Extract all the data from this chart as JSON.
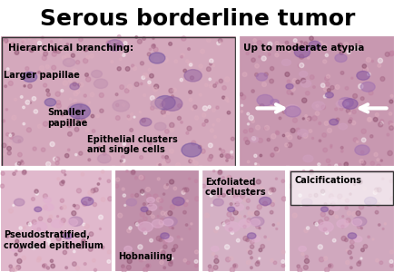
{
  "title": "Serous borderline tumor",
  "title_fontsize": 18,
  "title_fontweight": "bold",
  "title_color": "#000000",
  "background_color": "#ffffff",
  "panel_colors": {
    "top_left": "#d4a8bc",
    "top_right": "#c898b0",
    "bottom_left": "#e0b8cc",
    "bottom_mid_left": "#c090aa",
    "bottom_mid_right": "#d4b0c4",
    "bottom_right": "#d0a8be"
  },
  "cell_colors": {
    "top_left": [
      "#9060a0",
      "#7050a0",
      "#c090b0"
    ],
    "top_right": [
      "#8050a0",
      "#a070b0",
      "#d0a0c0"
    ],
    "bottom": [
      "#8050a0",
      "#b080b0",
      "#e0b0d0"
    ]
  },
  "tissue_dot_colors": [
    "#804060",
    "#a06080",
    "#c080a0",
    "#e0b0c0",
    "#ffffff"
  ],
  "tissue_dot_probs": [
    0.1,
    0.2,
    0.3,
    0.3,
    0.1
  ],
  "divider_color": "#ffffff",
  "divider_lw": 3,
  "annotations": {
    "top_left_title": "Hierarchical branching:",
    "top_left_label1": "Larger papillae",
    "top_left_label2": "Smaller\npapillae",
    "top_left_label3": "Epithelial clusters\nand single cells",
    "top_right_title": "Up to moderate atypia",
    "bottom_left_label": "Pseudostratified,\ncrowded epithelium",
    "bottom_mid_left_label": "Hobnailing",
    "bottom_mid_right_label": "Exfoliated\ncell clusters",
    "bottom_right_label": "Calcifications"
  },
  "font_sizes": {
    "panel_title": 7.5,
    "panel_label": 7.0
  }
}
